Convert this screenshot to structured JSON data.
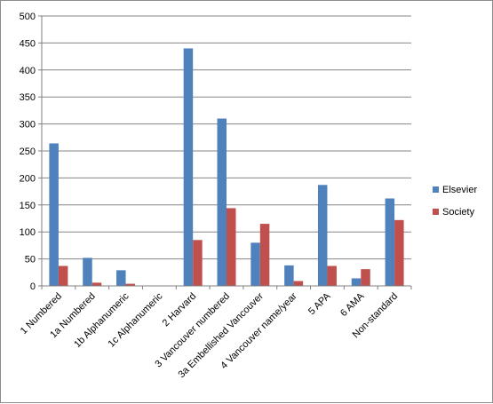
{
  "chart_data": {
    "type": "bar",
    "title": "",
    "xlabel": "",
    "ylabel": "",
    "ylim": [
      0,
      500
    ],
    "yticks": [
      0,
      50,
      100,
      150,
      200,
      250,
      300,
      350,
      400,
      450,
      500
    ],
    "categories": [
      "1 Numbered",
      "1a Numbered",
      "1b Alphanumeric",
      "1c Alphanumeric",
      "2 Harvard",
      "3 Vancouver numbered",
      "3a Embellished Vancouver",
      "4 Vancouver name/year",
      "5 APA",
      "6 AMA",
      "Non-standard"
    ],
    "series": [
      {
        "name": "Elsevier",
        "color": "#4f81bd",
        "values": [
          264,
          52,
          29,
          0,
          440,
          310,
          80,
          38,
          187,
          14,
          162
        ]
      },
      {
        "name": "Society",
        "color": "#c0504d",
        "values": [
          37,
          6,
          4,
          0,
          85,
          144,
          115,
          9,
          37,
          31,
          122
        ]
      }
    ],
    "grid": true,
    "legend_position": "right"
  }
}
